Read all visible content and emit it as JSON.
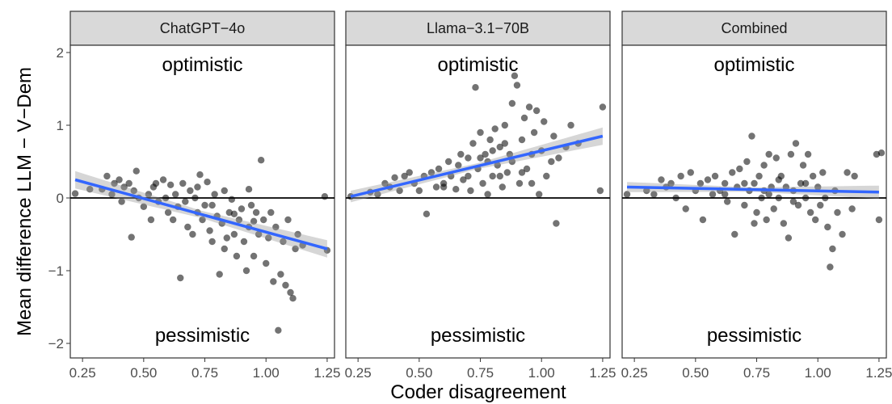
{
  "chart_data": {
    "type": "scatter",
    "xlabel": "Coder disagreement",
    "ylabel": "Mean difference LLM − V−Dem",
    "xlim": [
      0.2,
      1.28
    ],
    "ylim": [
      -2.2,
      2.1
    ],
    "x_ticks": [
      "0.25",
      "0.50",
      "0.75",
      "1.00",
      "1.25"
    ],
    "y_ticks": [
      "−2",
      "−1",
      "0",
      "1",
      "2"
    ],
    "reference_line_y": 0,
    "annotations": {
      "top": "optimistic",
      "bottom": "pessimistic"
    },
    "panels": [
      {
        "title": "ChatGPT−4o",
        "fit": {
          "x": [
            0.22,
            1.25
          ],
          "y": [
            0.25,
            -0.7
          ],
          "se_start": 0.12,
          "se_mid": 0.05,
          "se_end": 0.12
        },
        "points": [
          [
            0.22,
            0.06
          ],
          [
            0.28,
            0.12
          ],
          [
            0.33,
            0.12
          ],
          [
            0.35,
            0.3
          ],
          [
            0.37,
            0.05
          ],
          [
            0.38,
            0.2
          ],
          [
            0.4,
            0.25
          ],
          [
            0.41,
            -0.05
          ],
          [
            0.42,
            0.15
          ],
          [
            0.44,
            0.2
          ],
          [
            0.45,
            -0.54
          ],
          [
            0.46,
            0.1
          ],
          [
            0.47,
            0.37
          ],
          [
            0.48,
            0.0
          ],
          [
            0.5,
            -0.12
          ],
          [
            0.52,
            0.05
          ],
          [
            0.53,
            -0.3
          ],
          [
            0.55,
            0.2
          ],
          [
            0.56,
            -0.05
          ],
          [
            0.58,
            0.25
          ],
          [
            0.6,
            -0.2
          ],
          [
            0.61,
            0.18
          ],
          [
            0.62,
            -0.3
          ],
          [
            0.63,
            0.05
          ],
          [
            0.64,
            -0.12
          ],
          [
            0.65,
            -1.1
          ],
          [
            0.66,
            0.2
          ],
          [
            0.67,
            -0.05
          ],
          [
            0.68,
            -0.4
          ],
          [
            0.69,
            0.1
          ],
          [
            0.7,
            -0.5
          ],
          [
            0.71,
            0.0
          ],
          [
            0.72,
            -0.2
          ],
          [
            0.73,
            0.32
          ],
          [
            0.74,
            -0.3
          ],
          [
            0.75,
            -0.1
          ],
          [
            0.76,
            0.22
          ],
          [
            0.77,
            -0.45
          ],
          [
            0.78,
            -0.6
          ],
          [
            0.79,
            0.05
          ],
          [
            0.8,
            -0.25
          ],
          [
            0.81,
            -1.05
          ],
          [
            0.82,
            -0.35
          ],
          [
            0.83,
            0.1
          ],
          [
            0.84,
            -0.55
          ],
          [
            0.85,
            -0.2
          ],
          [
            0.86,
            -0.02
          ],
          [
            0.87,
            -0.5
          ],
          [
            0.88,
            -0.8
          ],
          [
            0.89,
            -0.3
          ],
          [
            0.9,
            -0.15
          ],
          [
            0.91,
            -0.6
          ],
          [
            0.92,
            -1.0
          ],
          [
            0.93,
            -0.4
          ],
          [
            0.94,
            -0.1
          ],
          [
            0.95,
            -0.8
          ],
          [
            0.96,
            -0.2
          ],
          [
            0.97,
            -0.5
          ],
          [
            0.98,
            0.52
          ],
          [
            0.99,
            -0.3
          ],
          [
            1.0,
            -0.9
          ],
          [
            1.01,
            -0.55
          ],
          [
            1.02,
            -0.2
          ],
          [
            1.03,
            -1.15
          ],
          [
            1.04,
            -0.4
          ],
          [
            1.05,
            -1.82
          ],
          [
            1.06,
            -1.05
          ],
          [
            1.07,
            -0.6
          ],
          [
            1.08,
            -1.2
          ],
          [
            1.09,
            -0.3
          ],
          [
            1.1,
            -1.3
          ],
          [
            1.11,
            -1.38
          ],
          [
            1.12,
            -0.7
          ],
          [
            1.13,
            -0.5
          ],
          [
            1.15,
            -0.65
          ],
          [
            1.24,
            0.02
          ],
          [
            1.25,
            -0.72
          ],
          [
            0.54,
            0.15
          ],
          [
            0.59,
            0.0
          ],
          [
            0.72,
            0.15
          ],
          [
            0.78,
            -0.1
          ],
          [
            0.83,
            -0.7
          ],
          [
            0.87,
            -0.22
          ],
          [
            0.93,
            0.12
          ],
          [
            0.95,
            -0.32
          ]
        ]
      },
      {
        "title": "Llama−3.1−70B",
        "fit": {
          "x": [
            0.22,
            1.25
          ],
          "y": [
            0.02,
            0.85
          ],
          "se_start": 0.08,
          "se_mid": 0.04,
          "se_end": 0.12
        },
        "points": [
          [
            0.22,
            0.02
          ],
          [
            0.3,
            0.08
          ],
          [
            0.33,
            0.05
          ],
          [
            0.36,
            0.2
          ],
          [
            0.38,
            0.15
          ],
          [
            0.4,
            0.28
          ],
          [
            0.42,
            0.1
          ],
          [
            0.44,
            0.3
          ],
          [
            0.46,
            0.35
          ],
          [
            0.48,
            0.2
          ],
          [
            0.5,
            0.1
          ],
          [
            0.52,
            0.3
          ],
          [
            0.53,
            -0.22
          ],
          [
            0.55,
            0.35
          ],
          [
            0.57,
            0.15
          ],
          [
            0.58,
            0.4
          ],
          [
            0.6,
            0.2
          ],
          [
            0.62,
            0.5
          ],
          [
            0.63,
            0.3
          ],
          [
            0.65,
            0.12
          ],
          [
            0.66,
            0.45
          ],
          [
            0.67,
            0.6
          ],
          [
            0.68,
            0.25
          ],
          [
            0.7,
            0.55
          ],
          [
            0.71,
            0.1
          ],
          [
            0.72,
            0.75
          ],
          [
            0.73,
            1.52
          ],
          [
            0.74,
            0.4
          ],
          [
            0.75,
            0.9
          ],
          [
            0.76,
            0.2
          ],
          [
            0.77,
            0.6
          ],
          [
            0.78,
            0.5
          ],
          [
            0.79,
            0.8
          ],
          [
            0.8,
            0.3
          ],
          [
            0.81,
            0.95
          ],
          [
            0.82,
            0.45
          ],
          [
            0.83,
            0.7
          ],
          [
            0.84,
            0.15
          ],
          [
            0.85,
            1.0
          ],
          [
            0.86,
            0.35
          ],
          [
            0.87,
            0.6
          ],
          [
            0.88,
            1.3
          ],
          [
            0.89,
            1.68
          ],
          [
            0.9,
            1.55
          ],
          [
            0.91,
            0.2
          ],
          [
            0.92,
            0.8
          ],
          [
            0.93,
            1.1
          ],
          [
            0.94,
            0.4
          ],
          [
            0.95,
            1.25
          ],
          [
            0.96,
            0.6
          ],
          [
            0.97,
            0.9
          ],
          [
            0.98,
            1.2
          ],
          [
            0.99,
            0.05
          ],
          [
            1.0,
            0.65
          ],
          [
            1.01,
            1.05
          ],
          [
            1.02,
            0.3
          ],
          [
            1.04,
            0.5
          ],
          [
            1.05,
            0.85
          ],
          [
            1.06,
            -0.35
          ],
          [
            1.07,
            0.55
          ],
          [
            1.1,
            0.7
          ],
          [
            1.12,
            1.0
          ],
          [
            1.15,
            0.75
          ],
          [
            1.24,
            0.1
          ],
          [
            1.25,
            1.25
          ],
          [
            0.6,
            0.15
          ],
          [
            0.7,
            0.3
          ],
          [
            0.75,
            0.55
          ],
          [
            0.8,
            0.65
          ],
          [
            0.85,
            0.75
          ],
          [
            0.88,
            0.5
          ],
          [
            0.92,
            0.35
          ],
          [
            0.96,
            0.2
          ],
          [
            0.78,
            0.05
          ],
          [
            0.83,
            0.3
          ]
        ]
      },
      {
        "title": "Combined",
        "fit": {
          "x": [
            0.22,
            1.25
          ],
          "y": [
            0.15,
            0.08
          ],
          "se_start": 0.07,
          "se_mid": 0.03,
          "se_end": 0.09
        },
        "points": [
          [
            0.22,
            0.05
          ],
          [
            0.3,
            0.1
          ],
          [
            0.33,
            0.05
          ],
          [
            0.36,
            0.25
          ],
          [
            0.38,
            0.15
          ],
          [
            0.4,
            0.2
          ],
          [
            0.42,
            0.0
          ],
          [
            0.44,
            0.3
          ],
          [
            0.46,
            -0.15
          ],
          [
            0.48,
            0.35
          ],
          [
            0.5,
            0.1
          ],
          [
            0.52,
            0.2
          ],
          [
            0.53,
            -0.3
          ],
          [
            0.55,
            0.25
          ],
          [
            0.57,
            0.05
          ],
          [
            0.58,
            0.3
          ],
          [
            0.6,
            0.1
          ],
          [
            0.62,
            0.2
          ],
          [
            0.63,
            -0.05
          ],
          [
            0.65,
            0.35
          ],
          [
            0.66,
            -0.5
          ],
          [
            0.67,
            0.15
          ],
          [
            0.68,
            0.4
          ],
          [
            0.7,
            -0.1
          ],
          [
            0.71,
            0.5
          ],
          [
            0.72,
            0.1
          ],
          [
            0.73,
            0.85
          ],
          [
            0.74,
            0.2
          ],
          [
            0.75,
            -0.2
          ],
          [
            0.76,
            0.3
          ],
          [
            0.77,
            0.0
          ],
          [
            0.78,
            0.45
          ],
          [
            0.79,
            -0.3
          ],
          [
            0.8,
            0.6
          ],
          [
            0.81,
            0.15
          ],
          [
            0.82,
            -0.15
          ],
          [
            0.83,
            0.55
          ],
          [
            0.84,
            0.0
          ],
          [
            0.85,
            0.3
          ],
          [
            0.86,
            -0.35
          ],
          [
            0.87,
            0.15
          ],
          [
            0.88,
            -0.55
          ],
          [
            0.89,
            0.6
          ],
          [
            0.9,
            0.1
          ],
          [
            0.91,
            0.75
          ],
          [
            0.92,
            -0.1
          ],
          [
            0.93,
            0.2
          ],
          [
            0.94,
            0.45
          ],
          [
            0.95,
            0.0
          ],
          [
            0.96,
            0.6
          ],
          [
            0.97,
            -0.2
          ],
          [
            0.98,
            0.3
          ],
          [
            0.99,
            -0.3
          ],
          [
            1.0,
            0.15
          ],
          [
            1.01,
            -0.1
          ],
          [
            1.02,
            0.35
          ],
          [
            1.03,
            0.0
          ],
          [
            1.04,
            -0.4
          ],
          [
            1.05,
            -0.95
          ],
          [
            1.06,
            -0.7
          ],
          [
            1.07,
            0.1
          ],
          [
            1.08,
            -0.2
          ],
          [
            1.1,
            -0.5
          ],
          [
            1.12,
            0.35
          ],
          [
            1.14,
            -0.15
          ],
          [
            1.15,
            0.3
          ],
          [
            1.24,
            0.6
          ],
          [
            1.25,
            -0.3
          ],
          [
            1.26,
            0.62
          ],
          [
            0.62,
            0.05
          ],
          [
            0.7,
            0.2
          ],
          [
            0.78,
            0.1
          ],
          [
            0.84,
            0.25
          ],
          [
            0.9,
            -0.05
          ],
          [
            0.95,
            0.2
          ],
          [
            0.74,
            -0.35
          ],
          [
            0.8,
            0.05
          ]
        ]
      }
    ]
  }
}
